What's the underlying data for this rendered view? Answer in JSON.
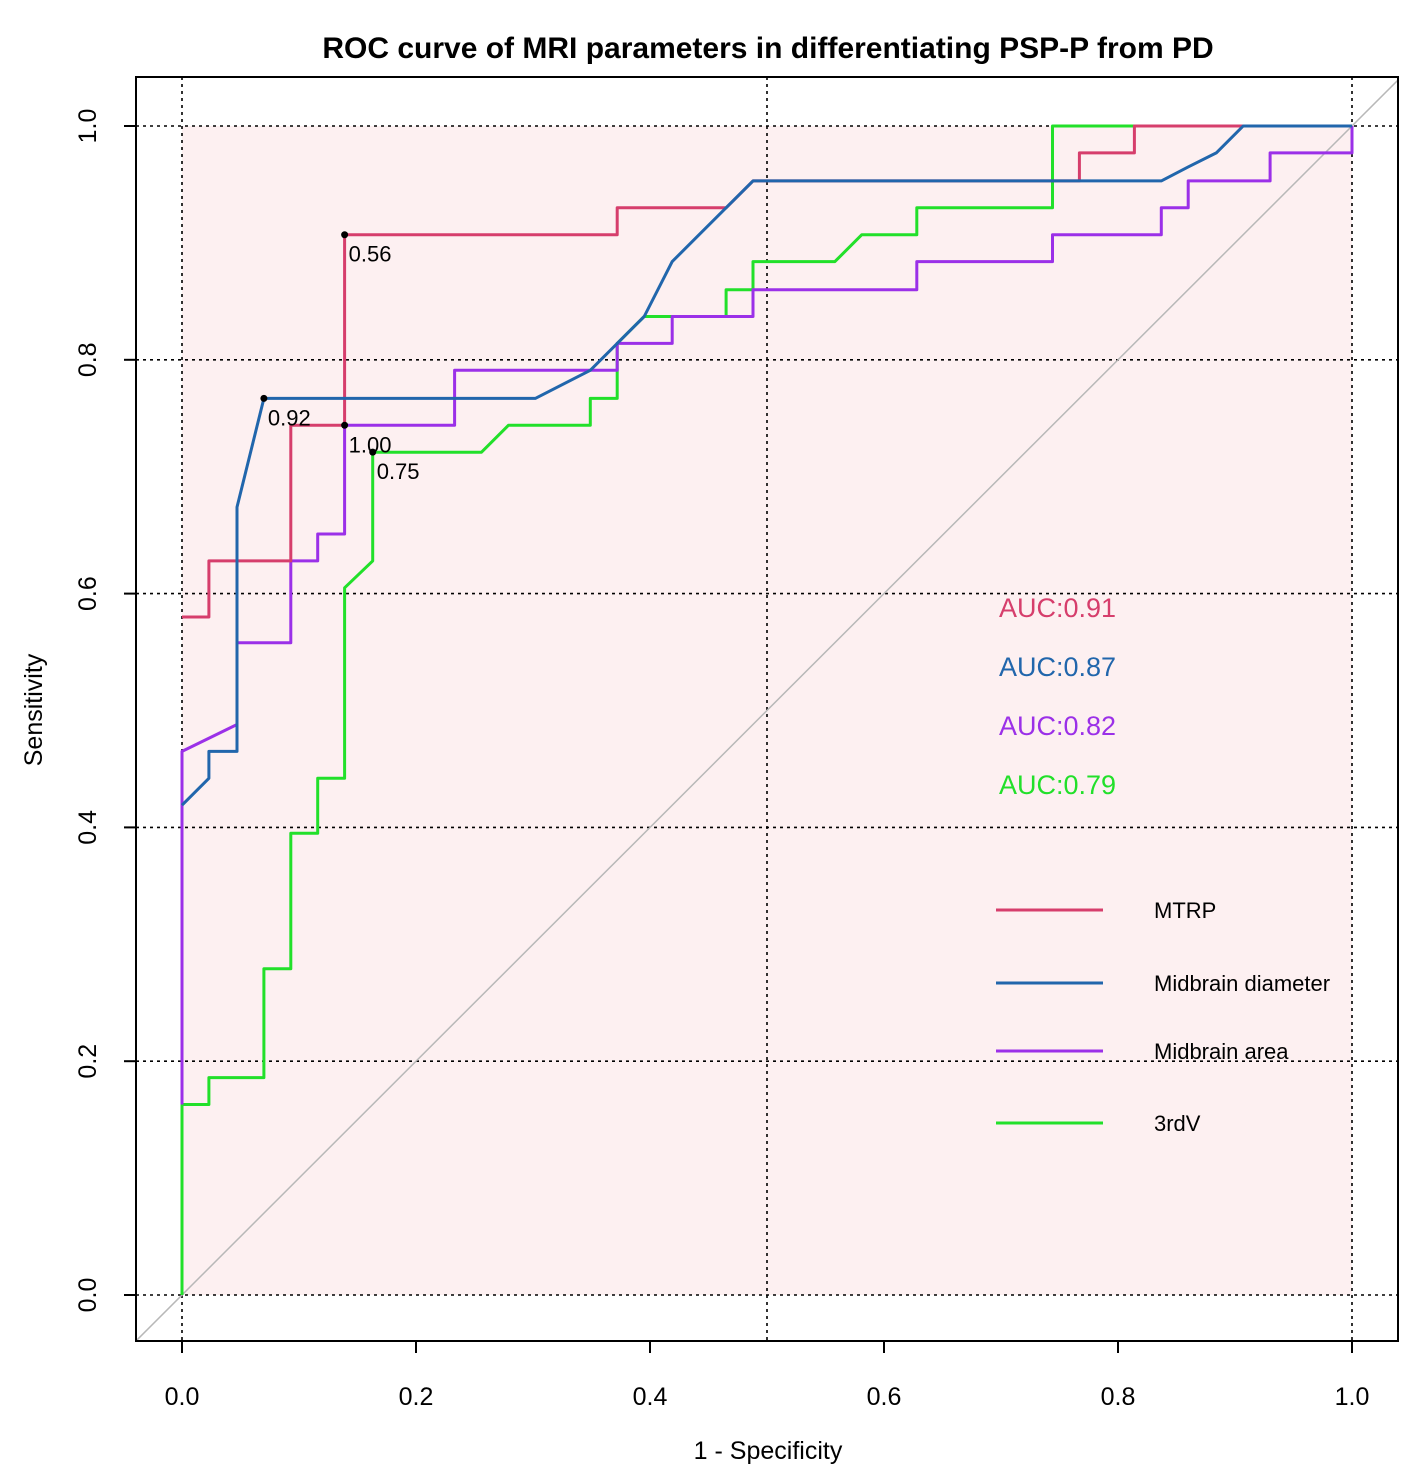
{
  "chart_data": {
    "type": "line",
    "title": "ROC curve of MRI parameters in differentiating PSP-P from PD",
    "xlabel": "1 - Specificity",
    "ylabel": "Sensitivity",
    "xlim": [
      0,
      1
    ],
    "ylim": [
      0,
      1
    ],
    "x_ticks": [
      "0.0",
      "0.2",
      "0.4",
      "0.6",
      "0.8",
      "1.0"
    ],
    "y_ticks": [
      "0.0",
      "0.2",
      "0.4",
      "0.6",
      "0.8",
      "1.0"
    ],
    "x_tick_values": [
      0,
      0.2,
      0.4,
      0.6,
      0.8,
      1.0
    ],
    "y_tick_values": [
      0,
      0.2,
      0.4,
      0.6,
      0.8,
      1.0
    ],
    "grid": "dotted at 0, 0.5, 1 (x) and 0.2-1.0 (y)",
    "grid_x": [
      0,
      0.5,
      1.0
    ],
    "grid_y": [
      0,
      0.2,
      0.4,
      0.6,
      0.8,
      1.0
    ],
    "fill_color": "#fdf0f1",
    "diagonal_color": "#b8b8b8",
    "series": [
      {
        "name": "MTRP",
        "color": "#d63e6c",
        "auc_label": "AUC:0.91",
        "points": [
          [
            0,
            0.58
          ],
          [
            0.023,
            0.58
          ],
          [
            0.023,
            0.628
          ],
          [
            0.093,
            0.628
          ],
          [
            0.093,
            0.744
          ],
          [
            0.139,
            0.744
          ],
          [
            0.139,
            0.907
          ],
          [
            0.372,
            0.907
          ],
          [
            0.372,
            0.93
          ],
          [
            0.465,
            0.93
          ],
          [
            0.488,
            0.953
          ],
          [
            0.767,
            0.953
          ],
          [
            0.767,
            0.977
          ],
          [
            0.814,
            0.977
          ],
          [
            0.814,
            1
          ],
          [
            1,
            1
          ]
        ],
        "cutoff": {
          "x": 0.139,
          "y": 0.907,
          "label": "0.56"
        }
      },
      {
        "name": "Midbrain diameter",
        "color": "#2166ac",
        "auc_label": "AUC:0.87",
        "points": [
          [
            0,
            0.419
          ],
          [
            0.023,
            0.442
          ],
          [
            0.023,
            0.465
          ],
          [
            0.047,
            0.465
          ],
          [
            0.047,
            0.674
          ],
          [
            0.07,
            0.767
          ],
          [
            0.302,
            0.767
          ],
          [
            0.349,
            0.791
          ],
          [
            0.372,
            0.814
          ],
          [
            0.395,
            0.837
          ],
          [
            0.419,
            0.884
          ],
          [
            0.442,
            0.907
          ],
          [
            0.488,
            0.953
          ],
          [
            0.837,
            0.953
          ],
          [
            0.86,
            0.965
          ],
          [
            0.884,
            0.977
          ],
          [
            0.907,
            1
          ],
          [
            1,
            1
          ]
        ],
        "cutoff": {
          "x": 0.07,
          "y": 0.767,
          "label": "0.92"
        }
      },
      {
        "name": "Midbrain area",
        "color": "#9b30e8",
        "auc_label": "AUC:0.82",
        "points": [
          [
            0,
            0.163
          ],
          [
            0,
            0.465
          ],
          [
            0.047,
            0.488
          ],
          [
            0.047,
            0.558
          ],
          [
            0.093,
            0.558
          ],
          [
            0.093,
            0.628
          ],
          [
            0.116,
            0.628
          ],
          [
            0.116,
            0.651
          ],
          [
            0.139,
            0.651
          ],
          [
            0.139,
            0.744
          ],
          [
            0.233,
            0.744
          ],
          [
            0.233,
            0.791
          ],
          [
            0.372,
            0.791
          ],
          [
            0.372,
            0.814
          ],
          [
            0.419,
            0.814
          ],
          [
            0.419,
            0.837
          ],
          [
            0.488,
            0.837
          ],
          [
            0.488,
            0.86
          ],
          [
            0.628,
            0.86
          ],
          [
            0.628,
            0.884
          ],
          [
            0.744,
            0.884
          ],
          [
            0.744,
            0.907
          ],
          [
            0.837,
            0.907
          ],
          [
            0.837,
            0.93
          ],
          [
            0.86,
            0.93
          ],
          [
            0.86,
            0.953
          ],
          [
            0.93,
            0.953
          ],
          [
            0.93,
            0.977
          ],
          [
            1,
            0.977
          ],
          [
            1,
            1
          ]
        ],
        "cutoff": {
          "x": 0.139,
          "y": 0.744,
          "label": "1.00"
        }
      },
      {
        "name": "3rdV",
        "color": "#22e02a",
        "auc_label": "AUC:0.79",
        "points": [
          [
            0,
            0
          ],
          [
            0,
            0.163
          ],
          [
            0.023,
            0.163
          ],
          [
            0.023,
            0.186
          ],
          [
            0.07,
            0.186
          ],
          [
            0.07,
            0.279
          ],
          [
            0.093,
            0.279
          ],
          [
            0.093,
            0.395
          ],
          [
            0.116,
            0.395
          ],
          [
            0.116,
            0.442
          ],
          [
            0.139,
            0.442
          ],
          [
            0.139,
            0.605
          ],
          [
            0.163,
            0.628
          ],
          [
            0.163,
            0.721
          ],
          [
            0.256,
            0.721
          ],
          [
            0.279,
            0.744
          ],
          [
            0.349,
            0.744
          ],
          [
            0.349,
            0.767
          ],
          [
            0.372,
            0.767
          ],
          [
            0.372,
            0.814
          ],
          [
            0.395,
            0.837
          ],
          [
            0.465,
            0.837
          ],
          [
            0.465,
            0.86
          ],
          [
            0.488,
            0.86
          ],
          [
            0.488,
            0.884
          ],
          [
            0.558,
            0.884
          ],
          [
            0.581,
            0.907
          ],
          [
            0.628,
            0.907
          ],
          [
            0.628,
            0.93
          ],
          [
            0.744,
            0.93
          ],
          [
            0.744,
            1
          ],
          [
            1,
            1
          ]
        ],
        "cutoff": {
          "x": 0.163,
          "y": 0.721,
          "label": "0.75"
        }
      }
    ]
  }
}
